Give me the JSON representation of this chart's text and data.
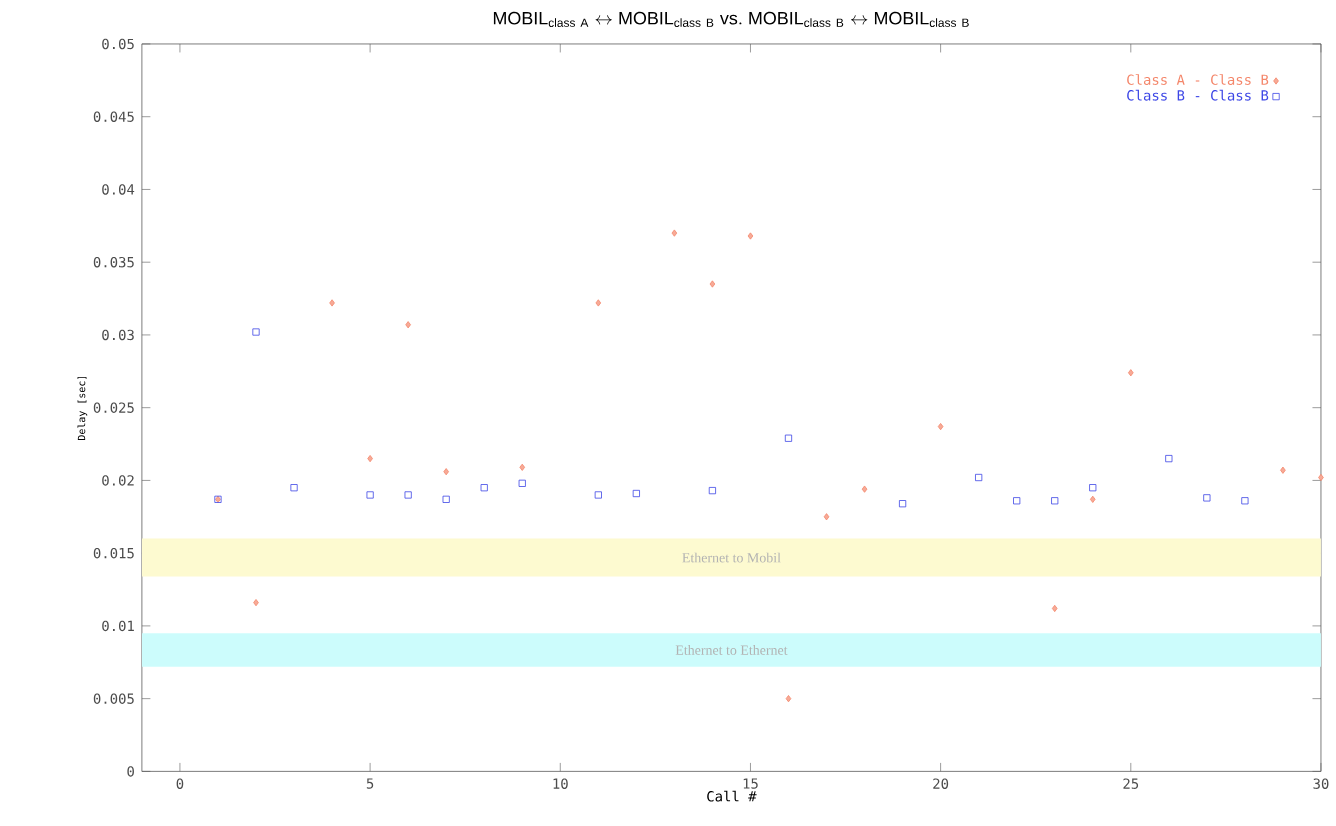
{
  "chart_data": {
    "type": "scatter",
    "title": "\\mathrm{MOBIL}_{\\mathrm{class\\ A}} \\leftrightarrow \\mathrm{MOBIL}_{\\mathrm{class\\ B}}\\ \\mathrm{vs.}\\ \\mathrm{MOBIL}_{\\mathrm{class\\ B}} \\leftrightarrow \\mathrm{MOBIL}_{\\mathrm{class\\ B}}",
    "xlabel": "Call #",
    "ylabel": "Delay [sec]",
    "xlim": [
      -1,
      30
    ],
    "ylim": [
      0,
      0.05
    ],
    "xticks": [
      0,
      5,
      10,
      15,
      20,
      25,
      30
    ],
    "yticks": [
      0,
      0.005,
      0.01,
      0.015,
      0.02,
      0.025,
      0.03,
      0.035,
      0.04,
      0.045,
      0.05
    ],
    "legend": "top right",
    "grid": false,
    "bands": [
      {
        "axis": "y",
        "from": 0.0134,
        "to": 0.016,
        "label": "Ethernet to Mobil",
        "color": "#fdfad0"
      },
      {
        "axis": "y",
        "from": 0.0072,
        "to": 0.0095,
        "label": "Ethernet to Ethernet",
        "color": "#ccfcfc"
      }
    ],
    "series": [
      {
        "name": "Class A - Class B",
        "color": "#f4866a",
        "marker": "diamond",
        "x": [
          1,
          2,
          4,
          5,
          6,
          7,
          9,
          11,
          13,
          14,
          15,
          16,
          17,
          18,
          20,
          23,
          24,
          25,
          29,
          30
        ],
        "values": [
          0.0187,
          0.0116,
          0.0322,
          0.0215,
          0.0307,
          0.0206,
          0.0209,
          0.0322,
          0.037,
          0.0335,
          0.0368,
          0.005,
          0.0175,
          0.0194,
          0.0237,
          0.0112,
          0.0187,
          0.0274,
          0.0207,
          0.0202
        ]
      },
      {
        "name": "Class B - Class B",
        "color": "#3c46e6",
        "marker": "square",
        "x": [
          1,
          2,
          3,
          5,
          6,
          7,
          8,
          9,
          11,
          12,
          14,
          16,
          19,
          21,
          22,
          23,
          24,
          26,
          27,
          28
        ],
        "values": [
          0.0187,
          0.0302,
          0.0195,
          0.019,
          0.019,
          0.0187,
          0.0195,
          0.0198,
          0.019,
          0.0191,
          0.0193,
          0.0229,
          0.0184,
          0.0202,
          0.0186,
          0.0186,
          0.0195,
          0.0215,
          0.0188,
          0.0186
        ]
      }
    ]
  }
}
